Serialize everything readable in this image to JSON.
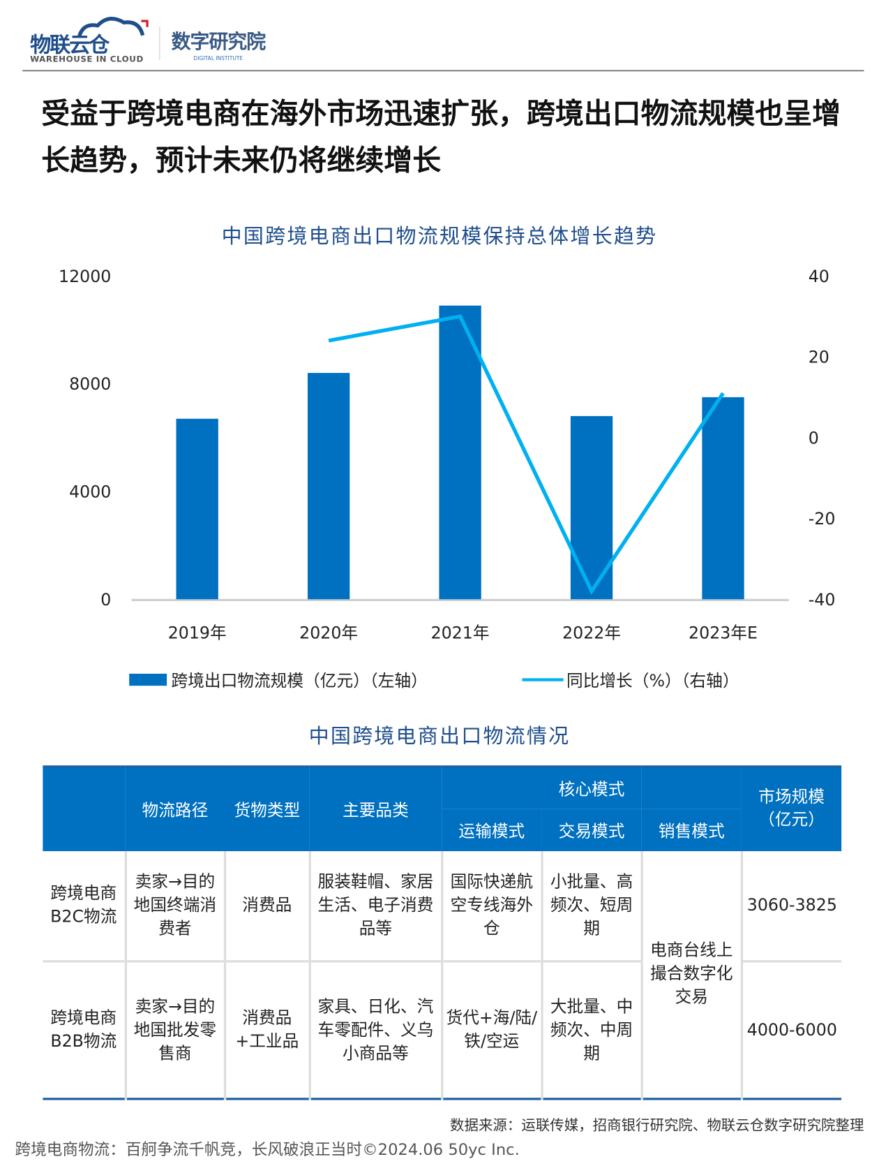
{
  "brand": {
    "logo1_cn": "物联云仓",
    "logo1_en": "WAREHOUSE IN CLOUD",
    "logo2_cn": "数字研究院",
    "logo2_en": "DIGITAL INSTITUTE"
  },
  "headline": "受益于跨境电商在海外市场迅速扩张，跨境出口物流规模也呈增长趋势，预计未来仍将继续增长",
  "chart_data": {
    "type": "bar+line",
    "title": "中国跨境电商出口物流规模保持总体增长趋势",
    "categories": [
      "2019年",
      "2020年",
      "2021年",
      "2022年",
      "2023年E"
    ],
    "series": [
      {
        "name": "跨境出口物流规模（亿元）（左轴）",
        "type": "bar",
        "axis": "left",
        "color": "#0070c0",
        "values": [
          6700,
          8400,
          10900,
          6800,
          7500
        ]
      },
      {
        "name": "同比增长（%）（右轴）",
        "type": "line",
        "axis": "right",
        "color": "#00b0f0",
        "values": [
          null,
          24,
          30,
          -38,
          11
        ]
      }
    ],
    "y_left": {
      "ylim": [
        0,
        12000
      ],
      "ticks": [
        "0",
        "4000",
        "8000",
        "12000"
      ]
    },
    "y_right": {
      "ylim": [
        -40,
        40
      ],
      "ticks": [
        "-40",
        "-20",
        "0",
        "20",
        "40"
      ]
    },
    "legend": "bottom"
  },
  "table": {
    "title": "中国跨境电商出口物流情况",
    "headers": {
      "route": "物流路径",
      "goods": "货物类型",
      "category": "主要品类",
      "core": "核心模式",
      "transport": "运输模式",
      "trade": "交易模式",
      "sales": "销售模式",
      "size1": "市场规模",
      "size2": "（亿元）"
    },
    "rows": [
      {
        "name": "跨境电商B2C物流",
        "route": "卖家→目的地国终端消费者",
        "goods": "消费品",
        "category": "服装鞋帽、家居生活、电子消费品等",
        "transport": "国际快递航空专线海外仓",
        "trade": "小批量、高频次、短周期",
        "size": "3060-3825"
      },
      {
        "name": "跨境电商B2B物流",
        "route": "卖家→目的地国批发零售商",
        "goods": "消费品+工业品",
        "category": "家具、日化、汽车零配件、义乌小商品等",
        "transport": "货代+海/陆/铁/空运",
        "trade": "大批量、中频次、中周期",
        "size": "4000-6000"
      }
    ],
    "sales_shared": "电商台线上撮合数字化交易"
  },
  "source": "数据来源：运联传媒，招商银行研究院、物联云仓数字研究院整理",
  "footer": "跨境电商物流：百舸争流千帆竞，长风破浪正当时©2024.06 50yc Inc."
}
